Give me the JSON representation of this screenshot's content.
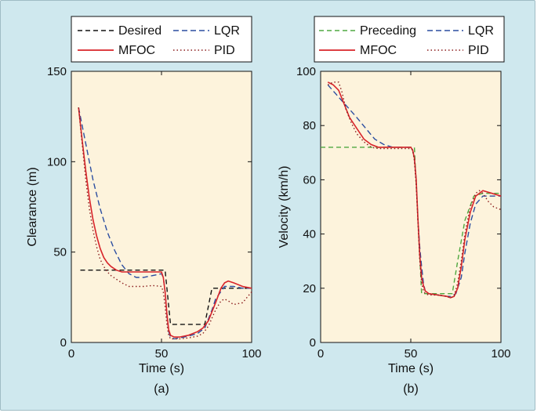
{
  "chart_data": [
    {
      "type": "line",
      "panel_label": "(a)",
      "xlabel": "Time (s)",
      "ylabel": "Clearance (m)",
      "xlim": [
        0,
        100
      ],
      "ylim": [
        0,
        150
      ],
      "xticks": [
        0,
        50,
        100
      ],
      "yticks": [
        0,
        50,
        100,
        150
      ],
      "grid": false,
      "legend_position": "top",
      "series": [
        {
          "name": "Desired",
          "color": "#111111",
          "dash": "6,4",
          "x": [
            5,
            50,
            52,
            55,
            74,
            78,
            100
          ],
          "y": [
            40,
            40,
            40,
            10,
            10,
            30,
            30
          ]
        },
        {
          "name": "LQR",
          "color": "#2b4da0",
          "dash": "7,4",
          "x": [
            4,
            8,
            12,
            16,
            20,
            24,
            28,
            32,
            36,
            40,
            45,
            50,
            51,
            52,
            53,
            54,
            55,
            57,
            60,
            65,
            70,
            74,
            78,
            80,
            85,
            90,
            95,
            100
          ],
          "y": [
            130,
            110,
            90,
            74,
            61,
            51,
            43,
            38,
            36,
            36,
            37,
            38,
            36,
            28,
            15,
            6,
            3,
            2,
            2.5,
            3.5,
            5,
            8,
            18,
            24,
            31,
            31,
            30,
            30
          ]
        },
        {
          "name": "MFOC",
          "color": "#d8242a",
          "dash": "",
          "x": [
            4,
            6,
            8,
            10,
            12,
            14,
            16,
            18,
            20,
            22,
            25,
            28,
            32,
            36,
            40,
            45,
            50,
            51,
            52,
            53,
            54,
            55,
            57,
            60,
            65,
            70,
            73,
            76,
            80,
            83,
            85,
            87,
            90,
            95,
            100
          ],
          "y": [
            130,
            112,
            95,
            80,
            68,
            59,
            52,
            47,
            44,
            42,
            40,
            39,
            39,
            39,
            39,
            39,
            39,
            36,
            28,
            16,
            7,
            4,
            3,
            3,
            4,
            6,
            8,
            12,
            22,
            30,
            33,
            34,
            33,
            31,
            30
          ]
        },
        {
          "name": "PID",
          "color": "#8b1e1e",
          "dash": "1.5,3",
          "x": [
            4,
            6,
            8,
            10,
            12,
            14,
            16,
            18,
            20,
            22,
            25,
            28,
            32,
            36,
            40,
            45,
            50,
            51,
            52,
            53,
            54,
            55,
            57,
            60,
            65,
            70,
            73,
            76,
            80,
            83,
            85,
            87,
            90,
            95,
            100
          ],
          "y": [
            130,
            110,
            90,
            74,
            62,
            53,
            46,
            42,
            39,
            37,
            35,
            33,
            31,
            31,
            31,
            31.5,
            31,
            28,
            20,
            10,
            4,
            2,
            2,
            2,
            2.5,
            3.5,
            5,
            9,
            18,
            23,
            24,
            23,
            21,
            22,
            28
          ]
        }
      ]
    },
    {
      "type": "line",
      "panel_label": "(b)",
      "xlabel": "Time (s)",
      "ylabel": "Velocity (km/h)",
      "xlim": [
        0,
        100
      ],
      "ylim": [
        0,
        100
      ],
      "xticks": [
        0,
        50,
        100
      ],
      "yticks": [
        0,
        20,
        40,
        60,
        80,
        100
      ],
      "grid": false,
      "legend_position": "top",
      "series": [
        {
          "name": "Preceding",
          "color": "#4fa840",
          "dash": "6,4",
          "x": [
            0,
            50,
            52,
            54,
            56,
            73,
            76,
            80,
            85,
            90,
            100
          ],
          "y": [
            72,
            72,
            72,
            45,
            18,
            18,
            30,
            45,
            54,
            55,
            55
          ]
        },
        {
          "name": "LQR",
          "color": "#2b4da0",
          "dash": "7,4",
          "x": [
            4,
            8,
            12,
            16,
            20,
            25,
            30,
            35,
            40,
            45,
            50,
            51,
            52,
            53,
            54,
            55,
            56,
            57,
            58,
            60,
            65,
            70,
            72,
            75,
            78,
            80,
            83,
            86,
            90,
            95,
            100
          ],
          "y": [
            95,
            92,
            89,
            86,
            83,
            79,
            75,
            73,
            72,
            72,
            72,
            71,
            68,
            60,
            45,
            35,
            28,
            22,
            19,
            18,
            17.5,
            17,
            17,
            18,
            24,
            33,
            44,
            51,
            54,
            54,
            54
          ]
        },
        {
          "name": "MFOC",
          "color": "#d8242a",
          "dash": "",
          "x": [
            4,
            7,
            10,
            13,
            16,
            20,
            24,
            28,
            32,
            36,
            40,
            45,
            50,
            51,
            52,
            53,
            54,
            55,
            56,
            57,
            58,
            60,
            65,
            70,
            72,
            74,
            76,
            78,
            80,
            83,
            86,
            90,
            95,
            100
          ],
          "y": [
            96,
            95,
            93,
            88,
            83,
            79,
            75,
            73,
            72,
            72,
            72,
            72,
            72,
            71,
            68,
            60,
            45,
            32,
            24,
            21,
            19,
            18,
            17.5,
            17,
            16.5,
            17,
            20,
            28,
            38,
            48,
            54,
            56,
            55,
            54
          ]
        },
        {
          "name": "PID",
          "color": "#8b1e1e",
          "dash": "1.5,3",
          "x": [
            4,
            7,
            10,
            12,
            14,
            17,
            20,
            24,
            28,
            32,
            36,
            40,
            45,
            50,
            51,
            52,
            53,
            54,
            55,
            56,
            57,
            58,
            60,
            65,
            70,
            72,
            74,
            76,
            78,
            80,
            83,
            86,
            88,
            90,
            93,
            96,
            100
          ],
          "y": [
            95,
            96,
            96,
            92,
            86,
            81,
            77,
            74,
            72,
            71.5,
            71.5,
            71.5,
            71.5,
            71.5,
            71,
            67,
            58,
            44,
            30,
            22,
            19,
            18,
            17.5,
            17.5,
            17,
            16.5,
            17,
            22,
            30,
            40,
            50,
            55,
            56,
            55,
            52,
            50,
            49
          ]
        }
      ]
    }
  ]
}
